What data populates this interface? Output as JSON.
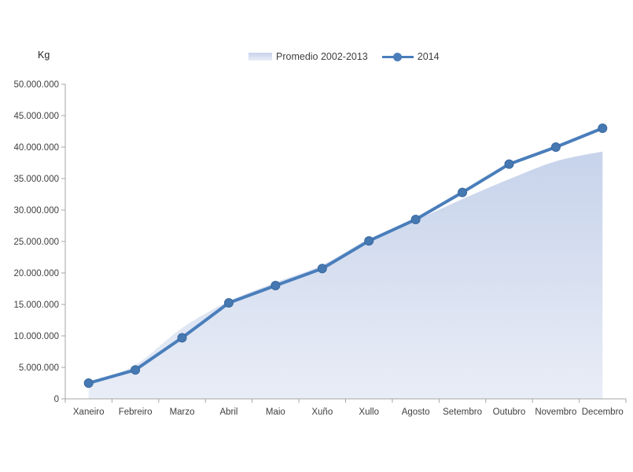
{
  "chart": {
    "unit_label": "Kg",
    "legend": [
      {
        "label": "Promedio 2002-2013",
        "type": "area"
      },
      {
        "label": "2014",
        "type": "line"
      }
    ],
    "colors": {
      "line": "#4A7EBB",
      "marker": "#4679B2",
      "marker_edge": "#3A699F",
      "area_top": "#C7D3EB",
      "area_bottom": "#E9EDF6",
      "axis": "#A6A6A6",
      "text": "#3F3F3F"
    }
  },
  "chart_data": {
    "type": "area+line",
    "title": "",
    "xlabel": "",
    "ylabel": "Kg",
    "categories": [
      "Xaneiro",
      "Febreiro",
      "Marzo",
      "Abril",
      "Maio",
      "Xuño",
      "Xullo",
      "Agosto",
      "Setembro",
      "Outubro",
      "Novembro",
      "Decembro"
    ],
    "series": [
      {
        "name": "Promedio 2002-2013",
        "type": "area",
        "values": [
          2400000,
          5400000,
          11250000,
          15500000,
          18500000,
          21250000,
          25400000,
          28400000,
          31750000,
          34900000,
          37750000,
          39300000
        ]
      },
      {
        "name": "2014",
        "type": "line",
        "values": [
          2500000,
          4600000,
          9700000,
          15250000,
          18000000,
          20700000,
          25100000,
          28500000,
          32800000,
          37300000,
          40000000,
          43000000
        ]
      }
    ],
    "ylim": [
      0,
      50000000
    ],
    "ytick_step": 5000000,
    "ytick_format": "dot-thousands",
    "grid": false,
    "legend_position": "top-center"
  }
}
